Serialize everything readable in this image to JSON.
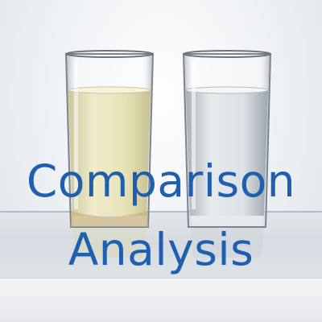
{
  "title": {
    "line1": "Comparison",
    "line2": "Analysis"
  },
  "colors": {
    "text": "#1f5fb0",
    "juice": "#e8e4b8",
    "water": "#d8dde2",
    "background": "#f4f6f8"
  },
  "objects": {
    "left_glass": "glass-of-pale-yellow-liquid",
    "right_glass": "glass-of-clear-water"
  }
}
